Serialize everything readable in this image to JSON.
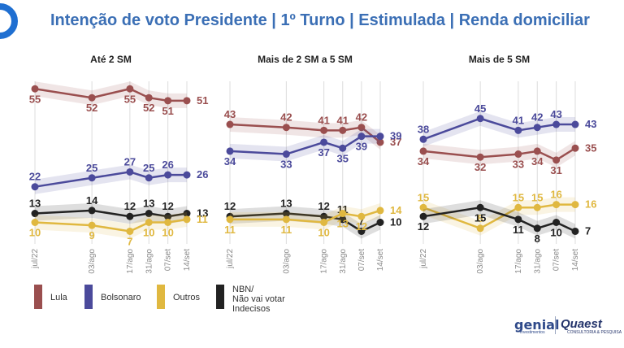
{
  "title": "Intenção de voto Presidente | 1º Turno | Estimulada | Renda domiciliar",
  "colors": {
    "Lula": "#9a4f4f",
    "Bolsonaro": "#4b4a9b",
    "Outros": "#e0b840",
    "NBN": "#222222",
    "title": "#3b6fb5"
  },
  "legend": [
    {
      "key": "Lula",
      "label": "Lula",
      "color": "#9a4f4f"
    },
    {
      "key": "Bolsonaro",
      "label": "Bolsonaro",
      "color": "#4b4a9b"
    },
    {
      "key": "Outros",
      "label": "Outros",
      "color": "#e0b840"
    },
    {
      "key": "NBN",
      "label": "NBN/\nNão vai votar\nIndecisos",
      "color": "#222222"
    }
  ],
  "brands": {
    "genial": "genial",
    "genial_sub": "investimentos",
    "quaest": "Quaest",
    "quaest_sub": "CONSULTORIA & PESQUISA"
  },
  "chart_data": [
    {
      "type": "line",
      "title": "Até 2 SM",
      "x": [
        "jul/22",
        "03/ago",
        "17/ago",
        "31/ago",
        "07/set",
        "14/set"
      ],
      "x_index": [
        0,
        3,
        5,
        6,
        7,
        8
      ],
      "series": [
        {
          "name": "Lula",
          "values": [
            55,
            52,
            55,
            52,
            51,
            51
          ]
        },
        {
          "name": "Bolsonaro",
          "values": [
            22,
            25,
            27,
            25,
            26,
            26
          ]
        },
        {
          "name": "NBN/ Não vai votar Indecisos",
          "values": [
            13,
            14,
            12,
            13,
            12,
            13
          ]
        },
        {
          "name": "Outros",
          "values": [
            10,
            9,
            7,
            10,
            10,
            11
          ]
        }
      ]
    },
    {
      "type": "line",
      "title": "Mais de 2 SM a 5 SM",
      "x": [
        "jul/22",
        "03/ago",
        "17/ago",
        "31/ago",
        "07/set",
        "14/set"
      ],
      "x_index": [
        0,
        3,
        5,
        6,
        7,
        8
      ],
      "series": [
        {
          "name": "Lula",
          "values": [
            43,
            42,
            41,
            41,
            42,
            37
          ]
        },
        {
          "name": "Bolsonaro",
          "values": [
            34,
            33,
            37,
            35,
            39,
            39
          ]
        },
        {
          "name": "NBN/ Não vai votar Indecisos",
          "values": [
            12,
            13,
            12,
            11,
            7,
            10
          ]
        },
        {
          "name": "Outros",
          "values": [
            11,
            11,
            10,
            13,
            12,
            14
          ]
        }
      ]
    },
    {
      "type": "line",
      "title": "Mais de 5 SM",
      "x": [
        "jul/22",
        "03/ago",
        "17/ago",
        "31/ago",
        "07/set",
        "14/set"
      ],
      "x_index": [
        0,
        3,
        5,
        6,
        7,
        8
      ],
      "series": [
        {
          "name": "Bolsonaro",
          "values": [
            38,
            45,
            41,
            42,
            43,
            43
          ]
        },
        {
          "name": "Lula",
          "values": [
            34,
            32,
            33,
            34,
            31,
            35
          ]
        },
        {
          "name": "Outros",
          "values": [
            15,
            8,
            15,
            15,
            16,
            16
          ]
        },
        {
          "name": "NBN/ Não vai votar Indecisos",
          "values": [
            12,
            15,
            11,
            8,
            10,
            7
          ]
        }
      ]
    }
  ]
}
